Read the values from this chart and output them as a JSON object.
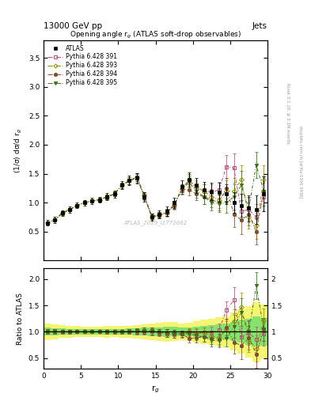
{
  "title_top": "13000 GeV pp",
  "title_right": "Jets",
  "plot_title": "Opening angle r$_{g}$ (ATLAS soft-drop observables)",
  "watermark": "ATLAS_2019_I1772062",
  "right_label_top": "Rivet 3.1.10, ≥ 3.1M events",
  "right_label_bottom": "mcplots.cern.ch [arXiv:1306.3436]",
  "ylabel_main": "(1/σ) dσ/d r$_{g}$",
  "ylabel_ratio": "Ratio to ATLAS",
  "xlabel": "r$_{g}$",
  "xlim": [
    0,
    30
  ],
  "ylim_main": [
    0,
    3.8
  ],
  "ylim_ratio": [
    0.3,
    2.2
  ],
  "x": [
    0.5,
    1.5,
    2.5,
    3.5,
    4.5,
    5.5,
    6.5,
    7.5,
    8.5,
    9.5,
    10.5,
    11.5,
    12.5,
    13.5,
    14.5,
    15.5,
    16.5,
    17.5,
    18.5,
    19.5,
    20.5,
    21.5,
    22.5,
    23.5,
    24.5,
    25.5,
    26.5,
    27.5,
    28.5,
    29.5
  ],
  "atlas_y": [
    0.65,
    0.7,
    0.82,
    0.88,
    0.95,
    1.0,
    1.03,
    1.05,
    1.1,
    1.15,
    1.3,
    1.38,
    1.42,
    1.1,
    0.75,
    0.8,
    0.85,
    1.0,
    1.28,
    1.4,
    1.3,
    1.22,
    1.2,
    1.18,
    1.15,
    1.0,
    0.95,
    0.9,
    0.88,
    1.15
  ],
  "atlas_yerr": [
    0.05,
    0.05,
    0.05,
    0.05,
    0.05,
    0.05,
    0.05,
    0.05,
    0.06,
    0.06,
    0.07,
    0.08,
    0.09,
    0.08,
    0.06,
    0.07,
    0.08,
    0.09,
    0.1,
    0.12,
    0.13,
    0.14,
    0.15,
    0.16,
    0.17,
    0.18,
    0.2,
    0.22,
    0.25,
    0.3
  ],
  "py391_y": [
    0.65,
    0.7,
    0.82,
    0.88,
    0.95,
    1.0,
    1.03,
    1.05,
    1.1,
    1.15,
    1.3,
    1.38,
    1.42,
    1.1,
    0.75,
    0.78,
    0.82,
    0.95,
    1.22,
    1.38,
    1.25,
    1.2,
    1.18,
    1.22,
    1.62,
    1.6,
    0.85,
    0.88,
    0.75,
    1.1
  ],
  "py391_yerr": [
    0.03,
    0.03,
    0.03,
    0.03,
    0.03,
    0.03,
    0.03,
    0.03,
    0.04,
    0.04,
    0.05,
    0.06,
    0.07,
    0.06,
    0.05,
    0.05,
    0.06,
    0.07,
    0.08,
    0.1,
    0.11,
    0.12,
    0.13,
    0.14,
    0.2,
    0.25,
    0.18,
    0.2,
    0.22,
    0.25
  ],
  "py393_y": [
    0.65,
    0.7,
    0.82,
    0.88,
    0.95,
    1.0,
    1.03,
    1.05,
    1.1,
    1.15,
    1.3,
    1.38,
    1.44,
    1.12,
    0.76,
    0.79,
    0.83,
    0.96,
    1.23,
    1.4,
    1.27,
    1.2,
    1.1,
    1.05,
    1.2,
    1.2,
    1.4,
    0.75,
    0.6,
    1.4
  ],
  "py393_yerr": [
    0.03,
    0.03,
    0.03,
    0.03,
    0.03,
    0.03,
    0.03,
    0.03,
    0.04,
    0.04,
    0.05,
    0.06,
    0.07,
    0.06,
    0.05,
    0.05,
    0.06,
    0.07,
    0.08,
    0.1,
    0.11,
    0.12,
    0.13,
    0.14,
    0.18,
    0.22,
    0.25,
    0.2,
    0.22,
    0.25
  ],
  "py394_y": [
    0.65,
    0.7,
    0.82,
    0.88,
    0.95,
    1.0,
    1.03,
    1.05,
    1.1,
    1.15,
    1.3,
    1.38,
    1.44,
    1.12,
    0.76,
    0.79,
    0.83,
    0.96,
    1.23,
    1.22,
    1.15,
    1.1,
    1.05,
    1.0,
    1.25,
    0.8,
    0.7,
    0.8,
    0.5,
    1.2
  ],
  "py394_yerr": [
    0.03,
    0.03,
    0.03,
    0.03,
    0.03,
    0.03,
    0.03,
    0.03,
    0.04,
    0.04,
    0.05,
    0.06,
    0.07,
    0.06,
    0.05,
    0.05,
    0.06,
    0.07,
    0.08,
    0.1,
    0.11,
    0.12,
    0.13,
    0.14,
    0.18,
    0.22,
    0.25,
    0.2,
    0.22,
    0.25
  ],
  "py395_y": [
    0.65,
    0.7,
    0.82,
    0.88,
    0.95,
    1.0,
    1.03,
    1.05,
    1.1,
    1.15,
    1.3,
    1.38,
    1.44,
    1.12,
    0.76,
    0.79,
    0.83,
    0.96,
    1.23,
    1.35,
    1.2,
    1.1,
    1.0,
    0.98,
    1.0,
    1.1,
    1.3,
    0.9,
    1.65,
    1.2
  ],
  "py395_yerr": [
    0.03,
    0.03,
    0.03,
    0.03,
    0.03,
    0.03,
    0.03,
    0.03,
    0.04,
    0.04,
    0.05,
    0.06,
    0.07,
    0.06,
    0.05,
    0.05,
    0.06,
    0.07,
    0.08,
    0.1,
    0.11,
    0.12,
    0.13,
    0.14,
    0.18,
    0.22,
    0.25,
    0.2,
    0.22,
    0.25
  ],
  "color_atlas": "#000000",
  "color_391": "#b05070",
  "color_393": "#909000",
  "color_394": "#7a5030",
  "color_395": "#407020",
  "band_green": "#00cc66",
  "band_yellow": "#eeee00",
  "band_green_alpha": 0.45,
  "band_yellow_alpha": 0.55
}
